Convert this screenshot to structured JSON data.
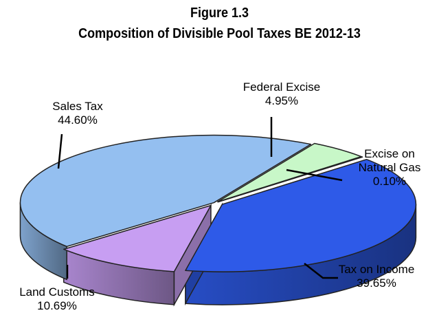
{
  "figure_label": "Figure 1.3",
  "chart_data": {
    "type": "pie",
    "title": "Composition of Divisible Pool Taxes BE 2012-13",
    "slices": [
      {
        "name": "Federal Excise",
        "value": 4.95,
        "label": "4.95%",
        "color": "#c8f7c8"
      },
      {
        "name": "Excise on Natural Gas",
        "value": 0.1,
        "label": "0.10%",
        "color": "#2a5a9a"
      },
      {
        "name": "Tax on Income",
        "value": 39.65,
        "label": "39.65%",
        "color": "#2e5ae8"
      },
      {
        "name": "Land Customs",
        "value": 10.69,
        "label": "10.69%",
        "color": "#c79ef2"
      },
      {
        "name": "Sales Tax",
        "value": 44.6,
        "label": "44.60%",
        "color": "#94bff0"
      }
    ],
    "label_lines": [
      [
        "Federal Excise"
      ],
      [
        "Excise on",
        "Natural Gas"
      ],
      [
        "Tax on Income"
      ],
      [
        "Land Customs"
      ],
      [
        "Sales Tax"
      ]
    ],
    "style": "3d-exploded"
  }
}
